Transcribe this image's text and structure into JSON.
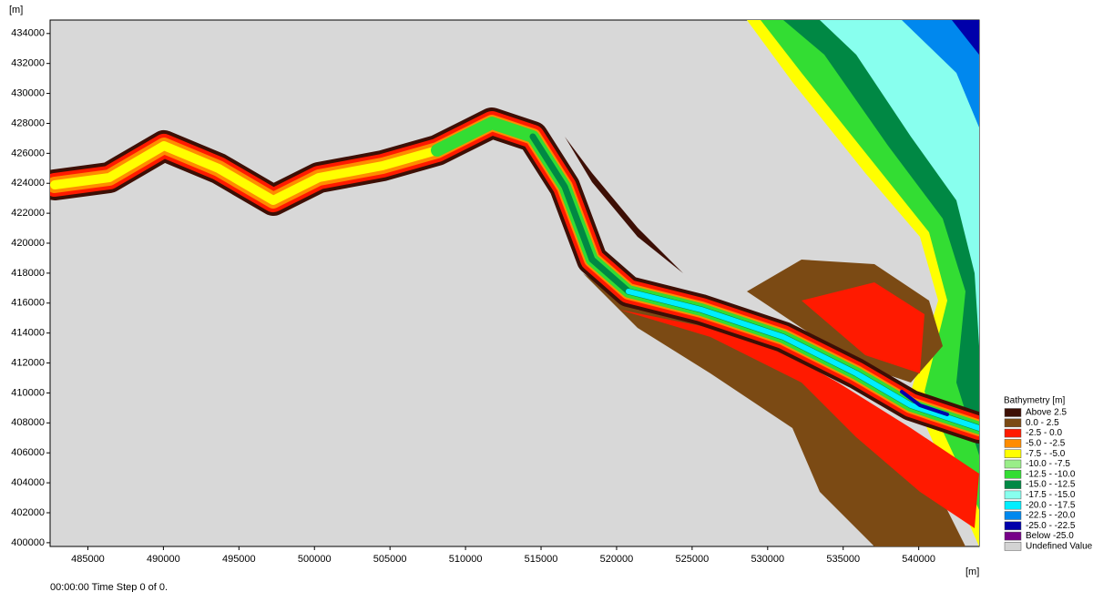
{
  "map": {
    "y_unit": "[m]",
    "x_unit": "[m]",
    "xlim": [
      482500,
      544000
    ],
    "xticks": [
      485000,
      490000,
      495000,
      500000,
      505000,
      510000,
      515000,
      520000,
      525000,
      530000,
      535000,
      540000
    ],
    "ylim": [
      399750,
      434900
    ],
    "yticks": [
      400000,
      402000,
      404000,
      406000,
      408000,
      410000,
      412000,
      414000,
      416000,
      418000,
      420000,
      422000,
      424000,
      426000,
      428000,
      430000,
      432000,
      434000
    ],
    "legend": {
      "title": "Bathymetry [m]",
      "items": [
        {
          "label": "Above 2.5",
          "color": "#3d0f05"
        },
        {
          "label": "0.0 - 2.5",
          "color": "#7b4a14"
        },
        {
          "label": "-2.5 - 0.0",
          "color": "#ff1a00"
        },
        {
          "label": "-5.0 - -2.5",
          "color": "#ff8c00"
        },
        {
          "label": "-7.5 - -5.0",
          "color": "#ffff00"
        },
        {
          "label": "-10.0 - -7.5",
          "color": "#99ee88"
        },
        {
          "label": "-12.5 - -10.0",
          "color": "#33dd33"
        },
        {
          "label": "-15.0 - -12.5",
          "color": "#008844"
        },
        {
          "label": "-17.5 - -15.0",
          "color": "#88ffee"
        },
        {
          "label": "-20.0 - -17.5",
          "color": "#00eeff"
        },
        {
          "label": "-22.5 - -20.0",
          "color": "#0088ee"
        },
        {
          "label": "-25.0 - -22.5",
          "color": "#0000aa"
        },
        {
          "label": "Below -25.0",
          "color": "#770088"
        },
        {
          "label": "Undefined Value",
          "color": "#d3d3d3"
        }
      ]
    }
  },
  "status": "00:00:00 Time Step 0 of 0."
}
